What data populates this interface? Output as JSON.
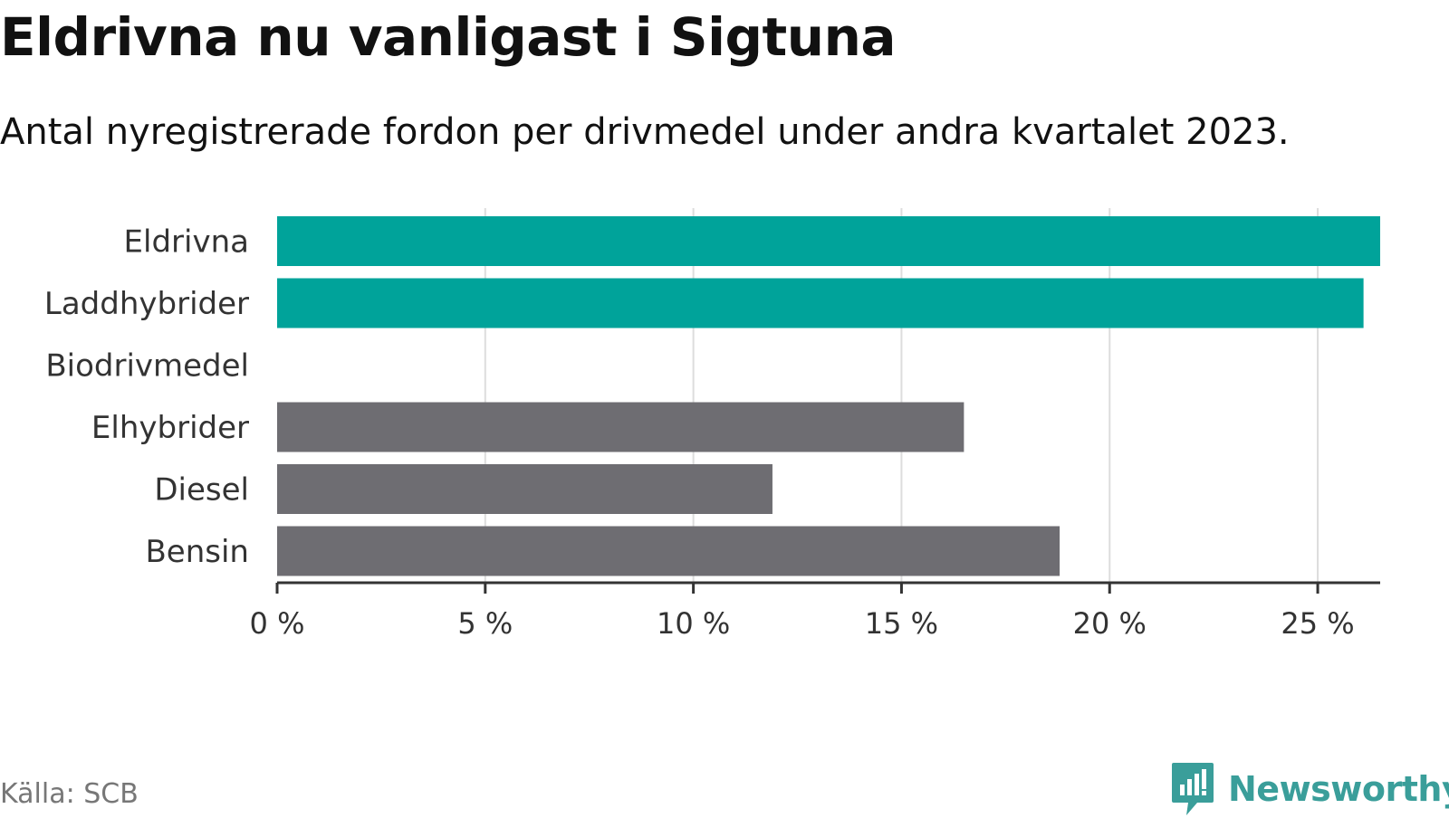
{
  "header": {
    "title": "Eldrivna nu vanligast i Sigtuna",
    "subtitle": "Antal nyregistrerade fordon per drivmedel under andra kvartalet 2023."
  },
  "footer": {
    "source": "Källa: SCB",
    "brand": "Newsworthy",
    "brand_icon": "chart-speech-bubble-icon",
    "brand_color": "#3a9e9a"
  },
  "chart_data": {
    "type": "bar",
    "orientation": "horizontal",
    "categories": [
      "Eldrivna",
      "Laddhybrider",
      "Biodrivmedel",
      "Elhybrider",
      "Diesel",
      "Bensin"
    ],
    "values": [
      26.5,
      26.1,
      0,
      16.5,
      11.9,
      18.8
    ],
    "colors": [
      "#00a39a",
      "#00a39a",
      "#00a39a",
      "#6e6d72",
      "#6e6d72",
      "#6e6d72"
    ],
    "xlim": [
      0,
      26.5
    ],
    "xticks": [
      0,
      5,
      10,
      15,
      20,
      25
    ],
    "xtick_labels": [
      "0 %",
      "5 %",
      "10 %",
      "15 %",
      "20 %",
      "25 %"
    ],
    "grid": true,
    "legend": "none",
    "xlabel": "",
    "ylabel": ""
  }
}
